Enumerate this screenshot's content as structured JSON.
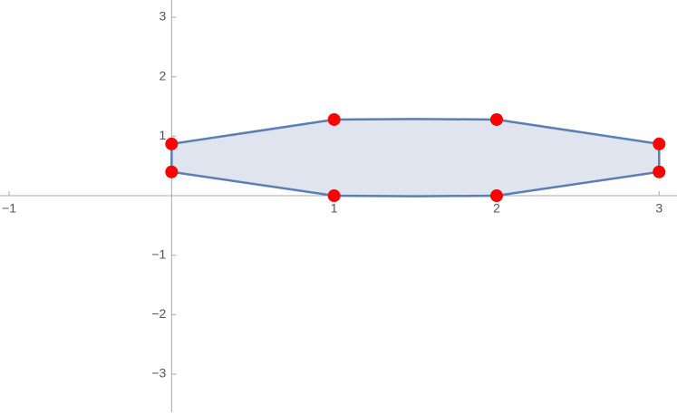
{
  "chart_data": {
    "type": "scatter",
    "xlim": [
      -1.056,
      3.11
    ],
    "ylim": [
      -3.67,
      3.29
    ],
    "xticks": [
      {
        "value": -1,
        "label": "−1"
      },
      1,
      2,
      3
    ],
    "yticks": [
      {
        "value": -3,
        "label": "−3"
      },
      {
        "value": -2,
        "label": "−2"
      },
      {
        "value": -1,
        "label": "−1"
      },
      1,
      2,
      3
    ],
    "region": {
      "x": [
        0,
        0,
        1,
        1.5,
        2,
        3,
        3,
        2,
        1.5,
        1
      ],
      "y": [
        0.4,
        0.87,
        1.28,
        1.29,
        1.28,
        0.87,
        0.4,
        0,
        -0.01,
        0
      ],
      "color": "#5b7fb5",
      "fill": "#dfe4ee"
    },
    "points": {
      "x": [
        0,
        0,
        1,
        1,
        2,
        2,
        3,
        3
      ],
      "y": [
        0.87,
        0.4,
        1.28,
        0,
        1.28,
        0,
        0.87,
        0.4
      ],
      "color": "#ff0000"
    }
  }
}
